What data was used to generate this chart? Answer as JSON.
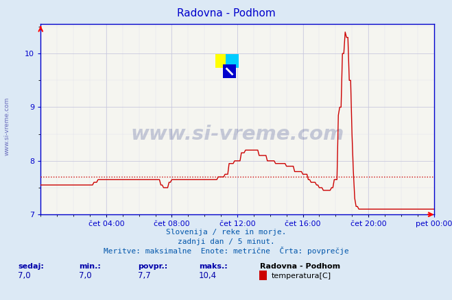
{
  "title": "Radovna - Podhom",
  "bg_color": "#dce9f5",
  "plot_bg_color": "#f5f5f0",
  "line_color": "#cc0000",
  "avg_line_color": "#cc0000",
  "avg_value": 7.7,
  "ylim": [
    7.0,
    10.55
  ],
  "yticks": [
    7,
    8,
    9,
    10
  ],
  "title_color": "#0000cc",
  "subtitle_lines": [
    "Slovenija / reke in morje.",
    "zadnji dan / 5 minut.",
    "Meritve: maksimalne  Enote: metrične  Črta: povprečje"
  ],
  "xtick_labels": [
    "čet 04:00",
    "čet 08:00",
    "čet 12:00",
    "čet 16:00",
    "čet 20:00",
    "pet 00:00"
  ],
  "xtick_positions": [
    0.1667,
    0.3333,
    0.5,
    0.6667,
    0.8333,
    1.0
  ],
  "watermark_text": "www.si-vreme.com",
  "left_watermark": "www.si-vreme.com",
  "logo_yellow": "#ffff00",
  "logo_cyan": "#00ccff",
  "logo_blue": "#0000cc",
  "logo_darkblue": "#1a237e",
  "spine_color": "#0000cc",
  "tick_color": "#0000cc",
  "grid_major_color": "#c8c8dd",
  "grid_minor_color": "#e0e0ec",
  "stats_label_color": "#0000aa",
  "stats_value_color": "#0000aa",
  "legend_title_color": "#000000",
  "legend_label_color": "#000000",
  "legend_box_color": "#cc0000"
}
